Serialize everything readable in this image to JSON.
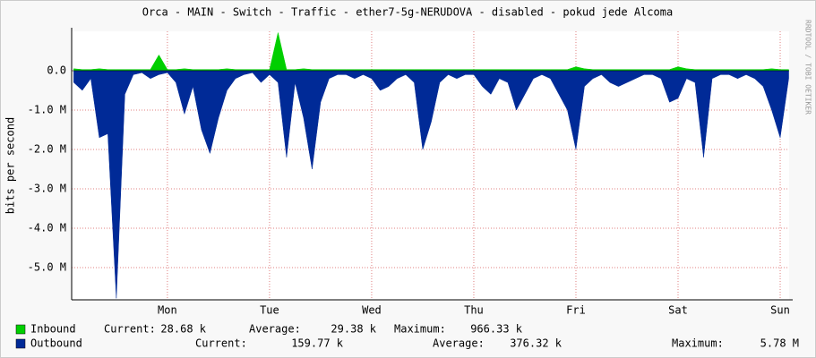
{
  "chart_data": {
    "type": "area",
    "title": "Orca - MAIN - Switch - Traffic - ether7-5g-NERUDOVA - disabled - pokud jede Alcoma",
    "y_label": "bits per second",
    "watermark": "RRDTOOL / TOBI OETIKER",
    "xlim": [
      1.5,
      170.1
    ],
    "xticks": [
      {
        "value": 24,
        "label": "Mon"
      },
      {
        "value": 48,
        "label": "Tue"
      },
      {
        "value": 72,
        "label": "Wed"
      },
      {
        "value": 96,
        "label": "Thu"
      },
      {
        "value": 120,
        "label": "Fri"
      },
      {
        "value": 144,
        "label": "Sat"
      },
      {
        "value": 168,
        "label": "Sun"
      }
    ],
    "ylim": [
      -5818000,
      1000000
    ],
    "yticks": [
      {
        "value": 0,
        "label": "0.0"
      },
      {
        "value": -1000000,
        "label": "-1.0 M"
      },
      {
        "value": -2000000,
        "label": "-2.0 M"
      },
      {
        "value": -3000000,
        "label": "-3.0 M"
      },
      {
        "value": -4000000,
        "label": "-4.0 M"
      },
      {
        "value": -5000000,
        "label": "-5.0 M"
      }
    ],
    "grid": true,
    "x": [
      2,
      4,
      6,
      8,
      10,
      12,
      14,
      16,
      18,
      20,
      22,
      24,
      26,
      28,
      30,
      32,
      34,
      36,
      38,
      40,
      42,
      44,
      46,
      48,
      50,
      52,
      54,
      56,
      58,
      60,
      62,
      64,
      66,
      68,
      70,
      72,
      74,
      76,
      78,
      80,
      82,
      84,
      86,
      88,
      90,
      92,
      94,
      96,
      98,
      100,
      102,
      104,
      106,
      108,
      110,
      112,
      114,
      116,
      118,
      120,
      122,
      124,
      126,
      128,
      130,
      132,
      134,
      136,
      138,
      140,
      142,
      144,
      146,
      148,
      150,
      152,
      154,
      156,
      158,
      160,
      162,
      164,
      166,
      168,
      170
    ],
    "series": [
      {
        "name": "Inbound",
        "color": "#00cf00",
        "stats": [
          {
            "label": "Current:",
            "value": "28.68 k"
          },
          {
            "label": "Average:",
            "value": "29.38 k"
          },
          {
            "label": "Maximum:",
            "value": "966.33 k"
          }
        ],
        "values": [
          50000,
          30000,
          30000,
          50000,
          30000,
          30000,
          30000,
          30000,
          30000,
          30000,
          400000,
          30000,
          30000,
          50000,
          30000,
          30000,
          30000,
          30000,
          50000,
          30000,
          30000,
          30000,
          30000,
          30000,
          966330,
          30000,
          30000,
          50000,
          30000,
          30000,
          30000,
          30000,
          30000,
          30000,
          30000,
          30000,
          30000,
          30000,
          30000,
          30000,
          30000,
          30000,
          30000,
          30000,
          30000,
          30000,
          30000,
          30000,
          30000,
          30000,
          30000,
          30000,
          30000,
          30000,
          30000,
          30000,
          30000,
          30000,
          30000,
          100000,
          50000,
          30000,
          30000,
          30000,
          30000,
          30000,
          30000,
          30000,
          30000,
          30000,
          30000,
          100000,
          50000,
          30000,
          30000,
          30000,
          30000,
          30000,
          30000,
          30000,
          30000,
          30000,
          50000,
          30000,
          30000
        ]
      },
      {
        "name": "Outbound",
        "color": "#002a97",
        "stats": [
          {
            "label": "Current:",
            "value": "159.77 k"
          },
          {
            "label": "Average:",
            "value": "376.32 k"
          },
          {
            "label": "Maximum:",
            "value": "5.78 M"
          }
        ],
        "values": [
          -300000,
          -500000,
          -200000,
          -1700000,
          -1600000,
          -5780000,
          -600000,
          -100000,
          -50000,
          -200000,
          -100000,
          -50000,
          -300000,
          -1100000,
          -400000,
          -1500000,
          -2100000,
          -1200000,
          -500000,
          -200000,
          -100000,
          -50000,
          -300000,
          -100000,
          -300000,
          -2200000,
          -300000,
          -1200000,
          -2500000,
          -800000,
          -200000,
          -100000,
          -100000,
          -200000,
          -100000,
          -200000,
          -500000,
          -400000,
          -200000,
          -100000,
          -300000,
          -2000000,
          -1300000,
          -300000,
          -100000,
          -200000,
          -100000,
          -100000,
          -400000,
          -600000,
          -200000,
          -300000,
          -1000000,
          -600000,
          -200000,
          -100000,
          -200000,
          -600000,
          -1000000,
          -2000000,
          -400000,
          -200000,
          -100000,
          -300000,
          -400000,
          -300000,
          -200000,
          -100000,
          -100000,
          -200000,
          -800000,
          -700000,
          -200000,
          -300000,
          -2200000,
          -200000,
          -100000,
          -100000,
          -200000,
          -100000,
          -200000,
          -400000,
          -1000000,
          -1700000,
          -200000
        ]
      }
    ]
  }
}
